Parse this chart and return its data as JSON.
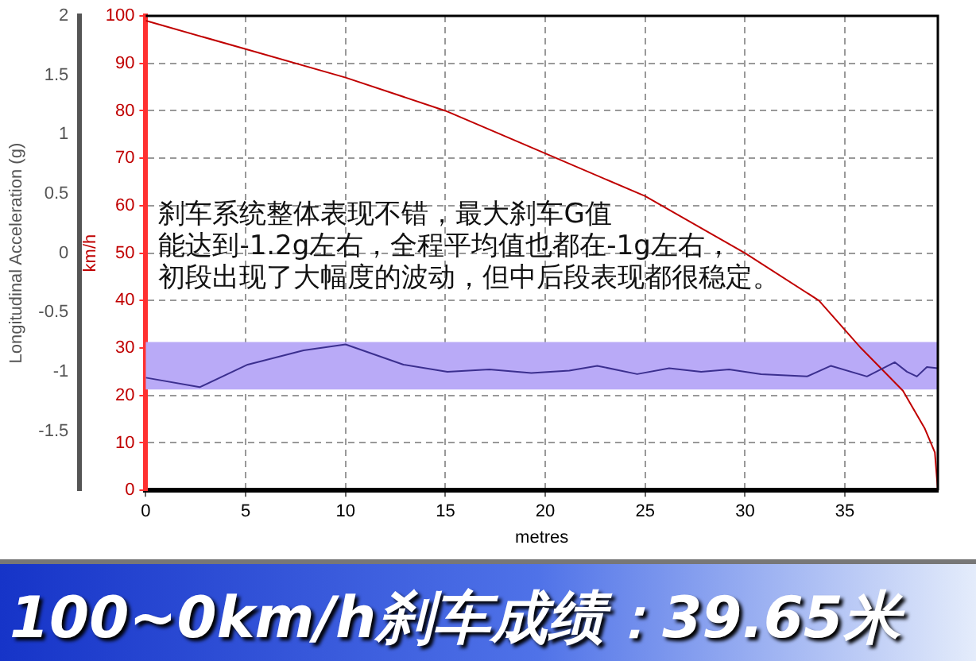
{
  "chart_data": {
    "type": "line",
    "title": "100~0km/h刹车成绩：39.65米",
    "xlabel": "metres",
    "ylabel": "Longitudinal Acceleration (g)",
    "y2label": "km/h",
    "annotations": [
      "刹车系统整体表现不错，最大刹车G值",
      "能达到-1.2g左右，全程平均值也都在-1g左右，",
      "初段出现了大幅度的波动，但中后段表现都很稳定。"
    ],
    "xlim": [
      0,
      39.65
    ],
    "xticks": [
      0,
      5,
      10,
      15,
      20,
      25,
      30,
      35
    ],
    "ylim": [
      -2,
      2
    ],
    "yticks": [
      -1.5,
      -1,
      -0.5,
      0,
      0.5,
      1,
      1.5,
      2
    ],
    "y2lim": [
      0,
      100
    ],
    "y2ticks": [
      0,
      10,
      20,
      30,
      40,
      50,
      60,
      70,
      80,
      90,
      100
    ],
    "grid": true,
    "legend": false,
    "marker": "none",
    "line_style": "solid",
    "bands": [
      {
        "axis": "y",
        "from": -1.15,
        "to": -0.75,
        "color": "#b9aaf7"
      }
    ],
    "series": [
      {
        "type": "line",
        "color": "#3b2f8f",
        "x": [
          0,
          2.7,
          5.1,
          7.9,
          10,
          12.9,
          15.1,
          17.2,
          19.3,
          21.2,
          22.6,
          24.6,
          26.2,
          27.8,
          29.2,
          30.8,
          33.1,
          34.3,
          36.1,
          37.5,
          38.1,
          38.6,
          39.1,
          39.65
        ],
        "values": [
          -1.05,
          -1.13,
          -0.94,
          -0.82,
          -0.77,
          -0.94,
          -1.0,
          -0.98,
          -1.01,
          -0.99,
          -0.95,
          -1.02,
          -0.97,
          -1.0,
          -0.98,
          -1.02,
          -1.04,
          -0.95,
          -1.04,
          -0.92,
          -1.0,
          -1.04,
          -0.96,
          -0.97
        ]
      },
      {
        "type": "line",
        "axis": "y2",
        "color": "#c00000",
        "x": [
          0,
          5,
          10,
          15,
          20,
          25,
          30,
          33.7,
          35.8,
          37.9,
          39,
          39.5,
          39.65
        ],
        "values": [
          99,
          93,
          87,
          80,
          71,
          62,
          50,
          40,
          30,
          21,
          13,
          8,
          0
        ]
      }
    ]
  }
}
